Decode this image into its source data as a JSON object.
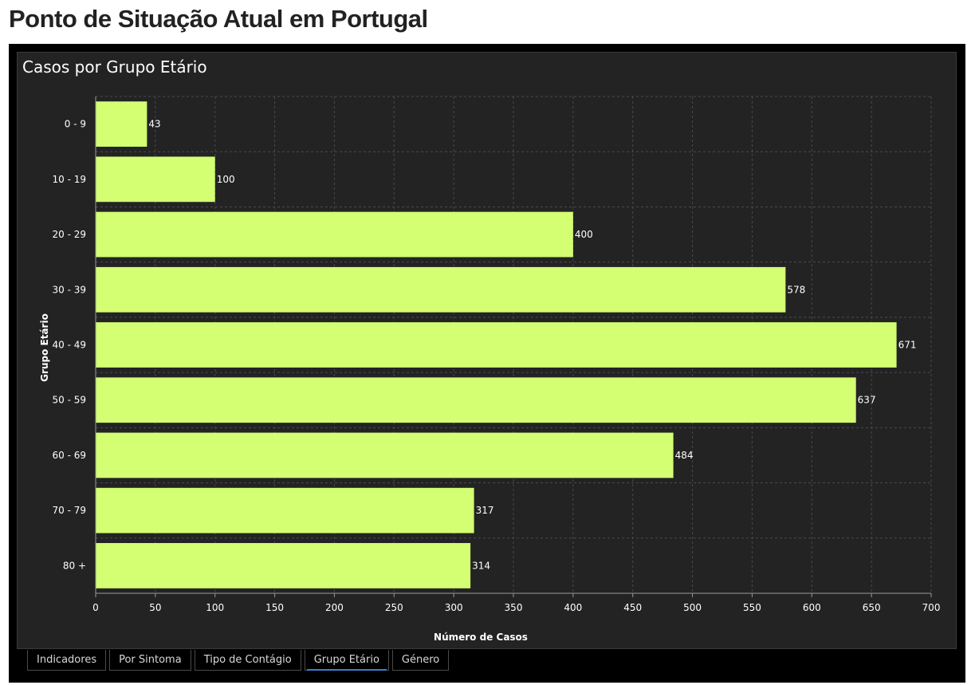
{
  "page": {
    "title": "Ponto de Situação Atual em Portugal"
  },
  "panel": {
    "title": "Casos por Grupo Etário"
  },
  "colors": {
    "bar": "#d4ff72",
    "background": "#232323",
    "grid": "#4a4a4a",
    "text": "#ffffff",
    "active_tab": "#3b7fd6"
  },
  "tabs": [
    {
      "label": "Indicadores",
      "active": false
    },
    {
      "label": "Por Sintoma",
      "active": false
    },
    {
      "label": "Tipo de Contágio",
      "active": false
    },
    {
      "label": "Grupo Etário",
      "active": true
    },
    {
      "label": "Género",
      "active": false
    }
  ],
  "chart_data": {
    "type": "bar",
    "orientation": "horizontal",
    "categories": [
      "0 - 9",
      "10 - 19",
      "20 - 29",
      "30 - 39",
      "40 - 49",
      "50 - 59",
      "60 - 69",
      "70 - 79",
      "80 +"
    ],
    "values": [
      43,
      100,
      400,
      578,
      671,
      637,
      484,
      317,
      314
    ],
    "title": "Casos por Grupo Etário",
    "xlabel": "Número de Casos",
    "ylabel": "Grupo Etário",
    "xlim": [
      0,
      700
    ],
    "xticks": [
      0,
      50,
      100,
      150,
      200,
      250,
      300,
      350,
      400,
      450,
      500,
      550,
      600,
      650,
      700
    ],
    "grid": true,
    "data_labels": true
  }
}
